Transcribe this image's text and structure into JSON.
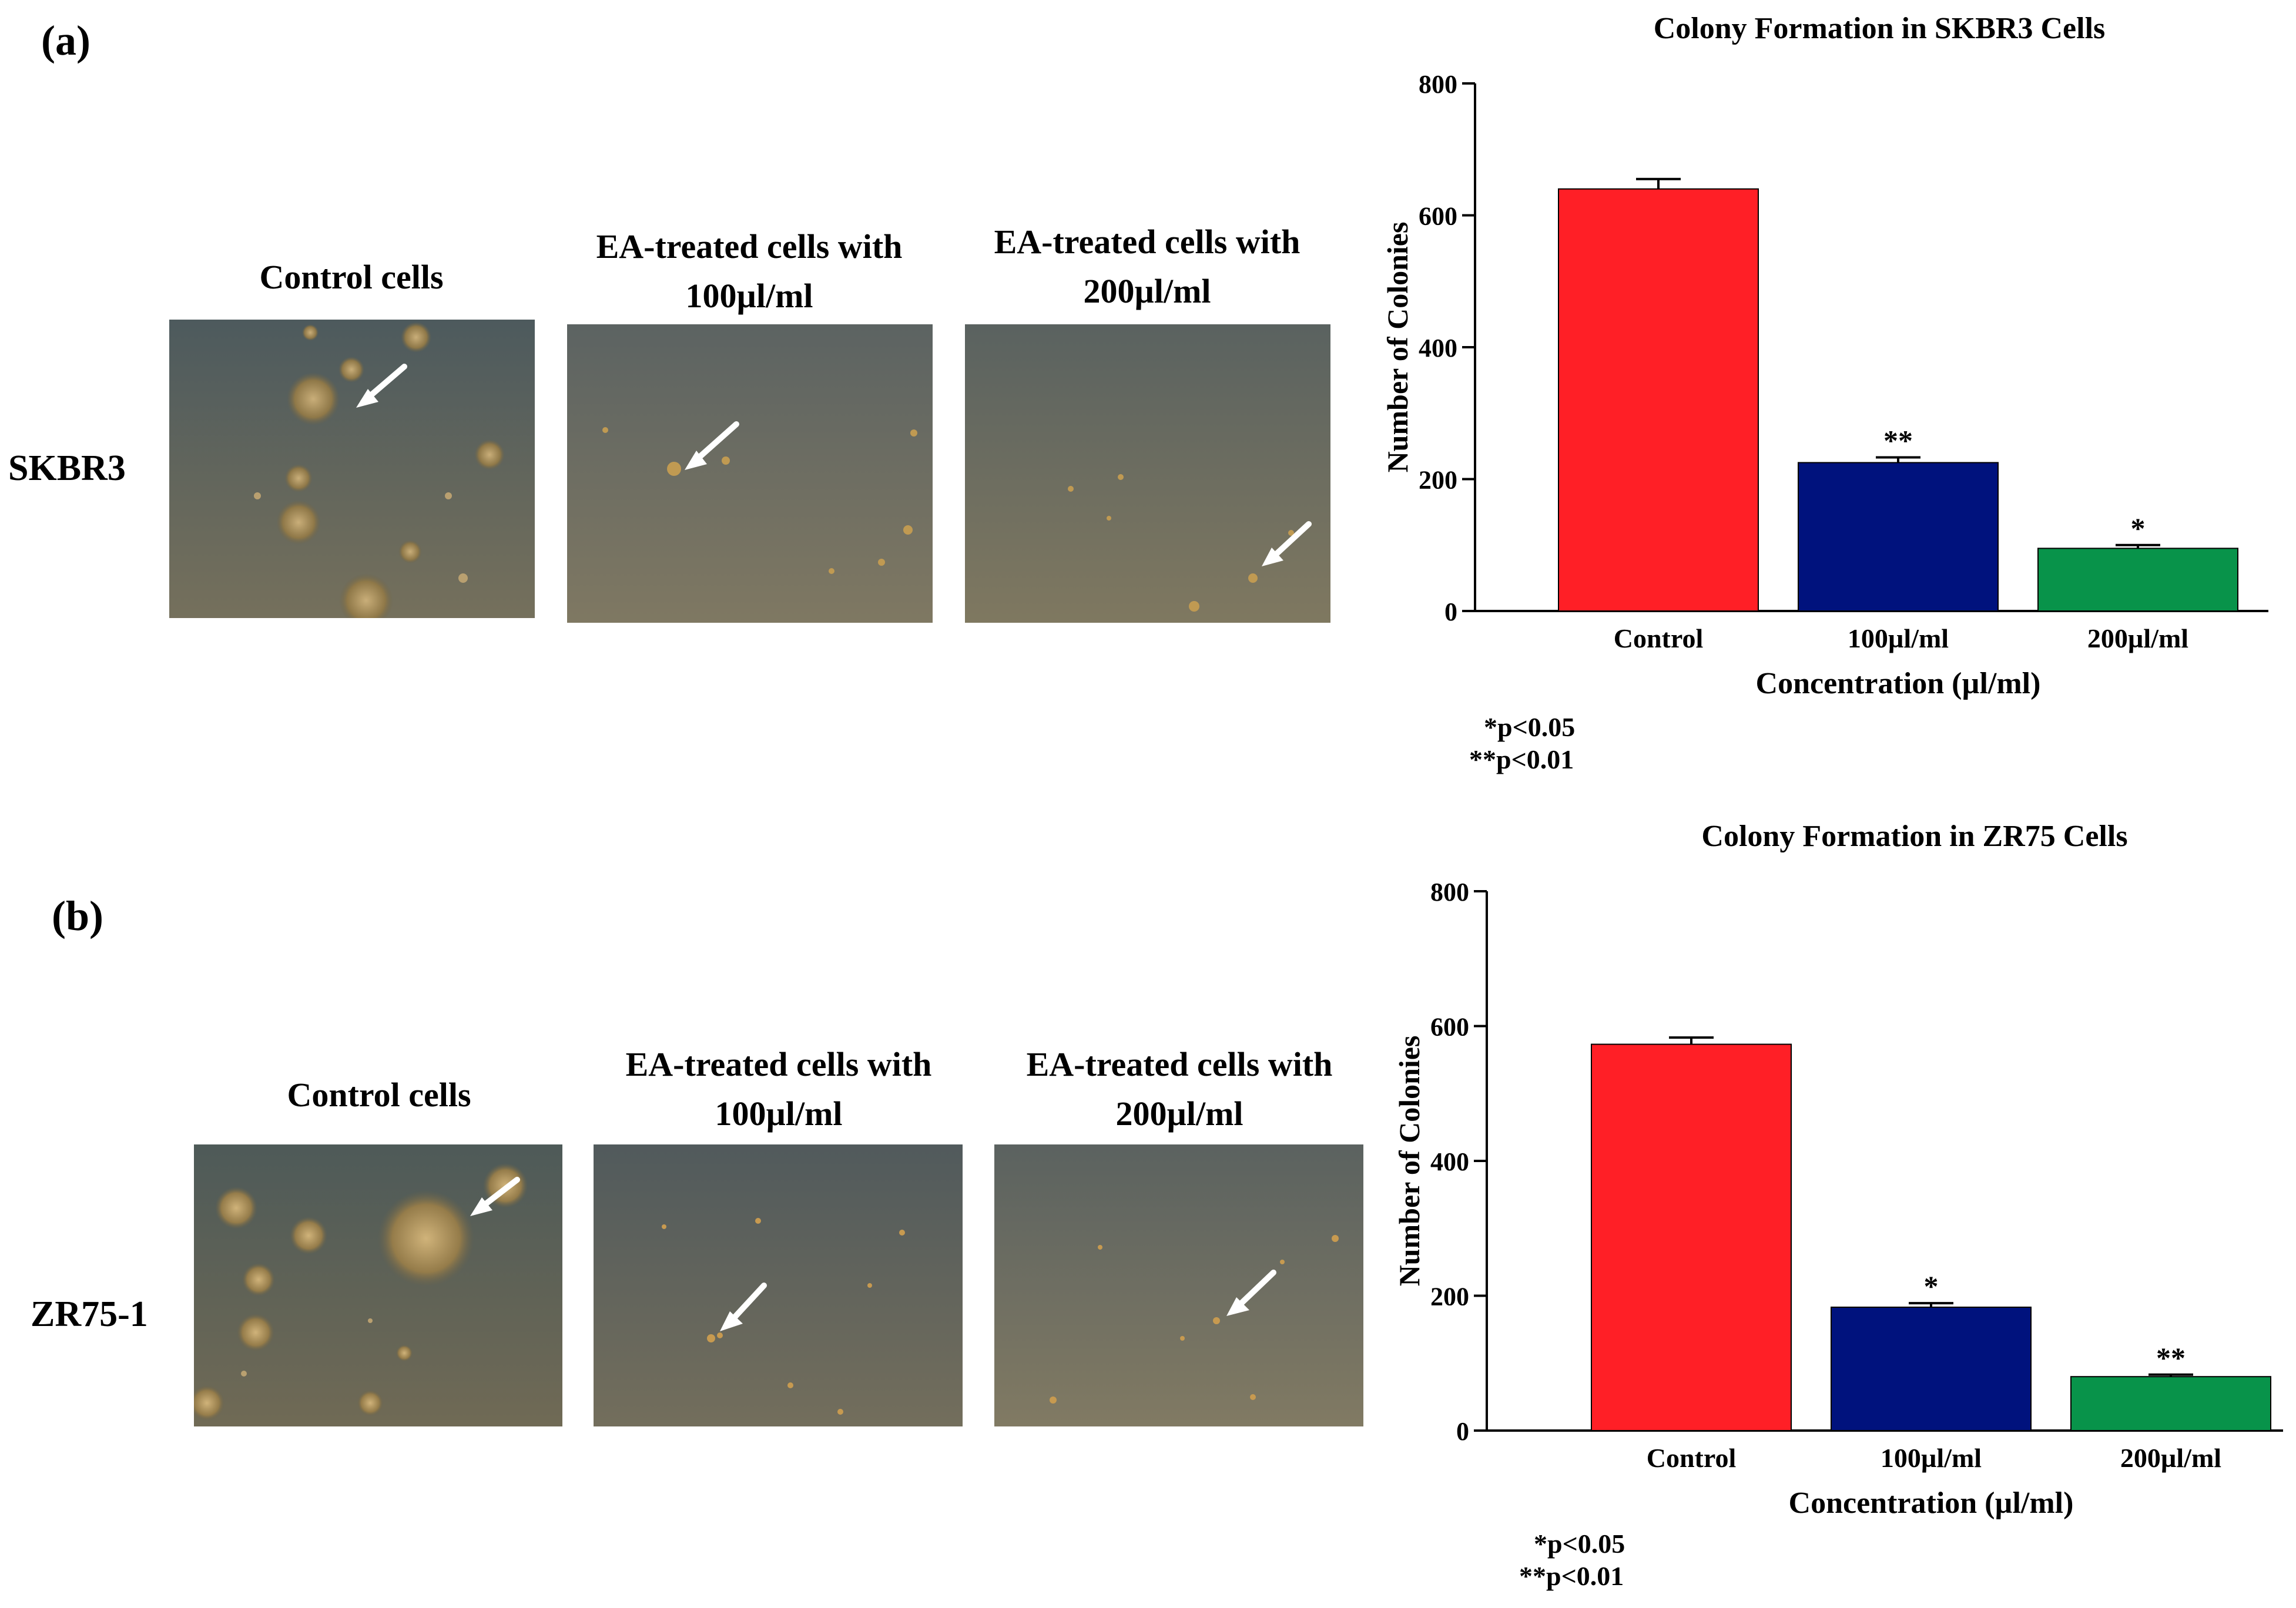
{
  "panels": [
    {
      "label": "(a)",
      "row_label": "SKBR3",
      "images": [
        {
          "caption_line1": "Control cells",
          "caption_line2": ""
        },
        {
          "caption_line1": "EA-treated cells with",
          "caption_line2": "100µl/ml"
        },
        {
          "caption_line1": "EA-treated cells with",
          "caption_line2": "200µl/ml"
        }
      ],
      "notes": [
        "*p<0.05",
        "**p<0.01"
      ]
    },
    {
      "label": "(b)",
      "row_label": "ZR75-1",
      "images": [
        {
          "caption_line1": "Control cells",
          "caption_line2": ""
        },
        {
          "caption_line1": "EA-treated cells with",
          "caption_line2": "100µl/ml"
        },
        {
          "caption_line1": "EA-treated cells with",
          "caption_line2": "200µl/ml"
        }
      ],
      "notes": [
        "*p<0.05",
        "**p<0.01"
      ]
    }
  ],
  "chart_data": [
    {
      "type": "bar",
      "title": "Colony Formation in SKBR3 Cells",
      "xlabel": "Concentration (µl/ml)",
      "ylabel": "Number of Colonies",
      "categories": [
        "Control",
        "100µl/ml",
        "200µl/ml"
      ],
      "values": [
        640,
        225,
        95
      ],
      "errors": [
        15,
        8,
        5
      ],
      "annotations": [
        "",
        "**",
        "*"
      ],
      "colors": [
        "#ff1f26",
        "#00127d",
        "#08934a"
      ],
      "ylim": [
        0,
        800
      ],
      "yticks": [
        "0",
        "200",
        "400",
        "600",
        "800"
      ],
      "grid": false
    },
    {
      "type": "bar",
      "title": "Colony Formation in ZR75 Cells",
      "xlabel": "Concentration (µl/ml)",
      "ylabel": "Number of Colonies",
      "categories": [
        "Control",
        "100µl/ml",
        "200µl/ml"
      ],
      "values": [
        573,
        183,
        80
      ],
      "errors": [
        10,
        6,
        3
      ],
      "annotations": [
        "",
        "*",
        "**"
      ],
      "colors": [
        "#ff1f26",
        "#00127d",
        "#08934a"
      ],
      "ylim": [
        0,
        800
      ],
      "yticks": [
        "0",
        "200",
        "400",
        "600",
        "800"
      ],
      "grid": false
    }
  ]
}
